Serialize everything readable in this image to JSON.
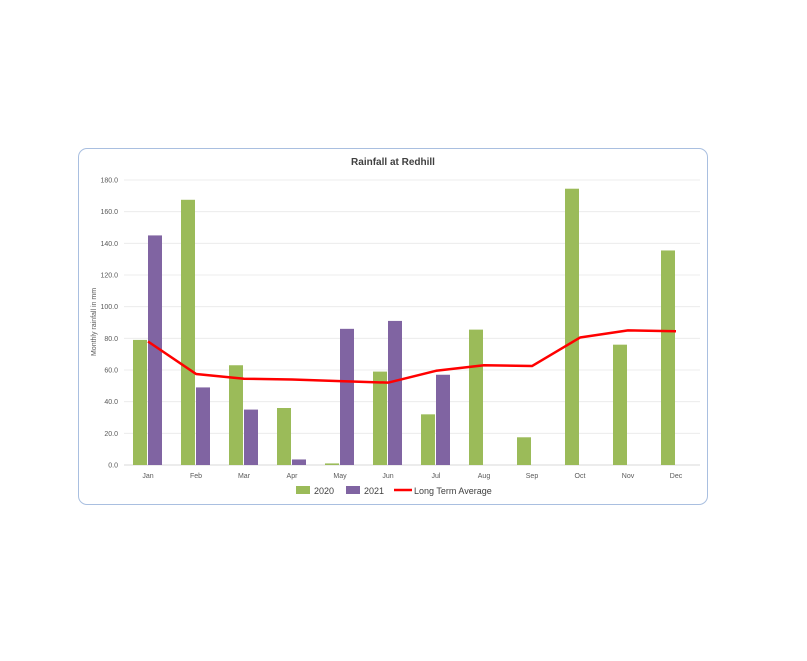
{
  "chart_data": {
    "type": "bar",
    "title": "Rainfall at Redhill",
    "xlabel": "",
    "ylabel": "Monthly rainfall in mm",
    "ylim": [
      0,
      180
    ],
    "yticks": [
      "0.0",
      "20.0",
      "40.0",
      "60.0",
      "80.0",
      "100.0",
      "120.0",
      "140.0",
      "160.0",
      "180.0"
    ],
    "categories": [
      "Jan",
      "Feb",
      "Mar",
      "Apr",
      "May",
      "Jun",
      "Jul",
      "Aug",
      "Sep",
      "Oct",
      "Nov",
      "Dec"
    ],
    "series": [
      {
        "name": "2020",
        "kind": "bar",
        "color": "#9bbb59",
        "values": [
          79,
          167.5,
          63,
          36,
          1,
          59,
          32,
          85.5,
          17.5,
          174.5,
          76,
          135.5
        ]
      },
      {
        "name": "2021",
        "kind": "bar",
        "color": "#8064a2",
        "values": [
          145,
          49,
          35,
          3.5,
          86,
          91,
          57,
          null,
          null,
          null,
          null,
          null
        ]
      },
      {
        "name": "Long Term Average",
        "kind": "line",
        "color": "#ff0000",
        "values": [
          78,
          57.5,
          54.5,
          54,
          53,
          52,
          59.5,
          63,
          62.5,
          80.5,
          85,
          84.5
        ]
      }
    ],
    "grid": true,
    "legend_position": "bottom"
  }
}
